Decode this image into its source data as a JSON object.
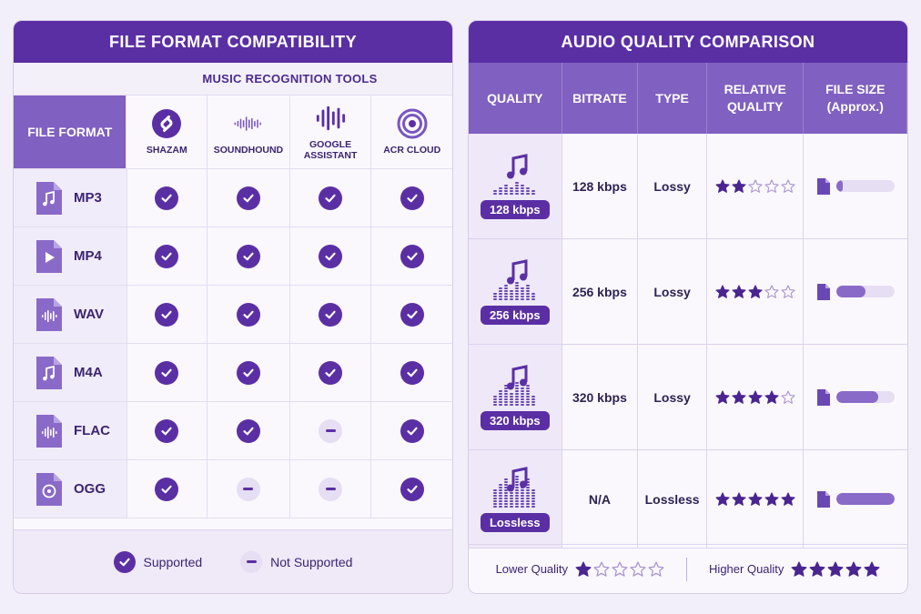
{
  "left": {
    "title": "FILE FORMAT COMPATIBILITY",
    "subtitle": "MUSIC RECOGNITION TOOLS",
    "format_header": "FILE FORMAT",
    "tools": [
      {
        "name": "SHAZAM",
        "icon": "shazam-logo-icon"
      },
      {
        "name": "SOUNDHOUND",
        "icon": "soundwave-icon"
      },
      {
        "name": "GOOGLE ASSISTANT",
        "icon": "soundwave-bars-icon"
      },
      {
        "name": "ACR CLOUD",
        "icon": "target-rings-icon"
      }
    ],
    "formats": [
      {
        "name": "MP3",
        "icon": "music-file-icon",
        "support": [
          true,
          true,
          true,
          true
        ]
      },
      {
        "name": "MP4",
        "icon": "video-file-icon",
        "support": [
          true,
          true,
          true,
          true
        ]
      },
      {
        "name": "WAV",
        "icon": "wave-file-icon",
        "support": [
          true,
          true,
          true,
          true
        ]
      },
      {
        "name": "M4A",
        "icon": "music-file-icon",
        "support": [
          true,
          true,
          true,
          true
        ]
      },
      {
        "name": "FLAC",
        "icon": "wave-file-icon",
        "support": [
          true,
          true,
          false,
          true
        ]
      },
      {
        "name": "OGG",
        "icon": "disc-file-icon",
        "support": [
          true,
          false,
          false,
          true
        ]
      }
    ],
    "legend": {
      "supported": "Supported",
      "not_supported": "Not Supported"
    }
  },
  "right": {
    "title": "AUDIO QUALITY COMPARISON",
    "headers": [
      "QUALITY",
      "BITRATE",
      "TYPE",
      "RELATIVE\nQUALITY",
      "FILE SIZE\n(Approx.)"
    ],
    "rows": [
      {
        "badge": "128 kbps",
        "bitrate": "128 kbps",
        "type": "Lossy",
        "stars": 2,
        "size_fraction": 0.1
      },
      {
        "badge": "256 kbps",
        "bitrate": "256 kbps",
        "type": "Lossy",
        "stars": 3,
        "size_fraction": 0.5
      },
      {
        "badge": "320 kbps",
        "bitrate": "320 kbps",
        "type": "Lossy",
        "stars": 4,
        "size_fraction": 0.72
      },
      {
        "badge": "Lossless",
        "bitrate": "N/A",
        "type": "Lossless",
        "stars": 5,
        "size_fraction": 1.0
      }
    ],
    "legend": {
      "low": "Lower Quality",
      "low_stars": 1,
      "high": "Higher Quality",
      "high_stars": 5
    }
  },
  "colors": {
    "primary": "#5b2fa4",
    "header": "#8060c0",
    "muted": "#e6def3"
  }
}
